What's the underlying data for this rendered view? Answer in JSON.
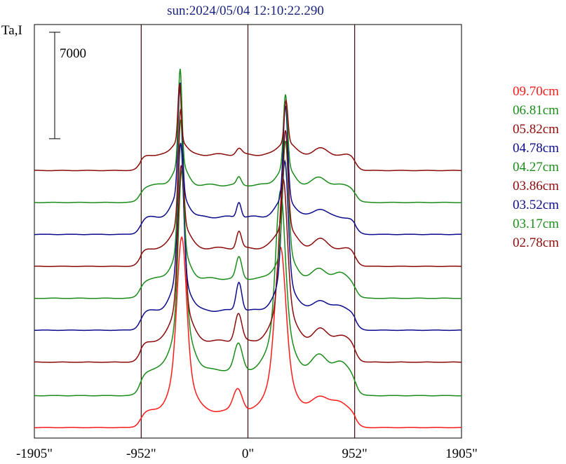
{
  "chart_data": {
    "type": "line",
    "title": "sun:2024/05/04 12:10:22.290",
    "title_color": "#1a237e",
    "ylabel": "Ta,I",
    "scale_bar_label": "7000",
    "x_ticks": [
      "-1905\"",
      "-952\"",
      "0\"",
      "952\"",
      "1905\""
    ],
    "x_tick_values": [
      -1905,
      -952,
      0,
      952,
      1905
    ],
    "xlim": [
      -1905,
      1905
    ],
    "vertical_lines_at": [
      -952,
      0,
      952
    ],
    "grid": false,
    "legend_position": "right",
    "series": [
      {
        "name": "09.70cm",
        "color": "#ff1a1a",
        "baseline": 0,
        "limb": 1100,
        "peaks": [
          {
            "x": -590,
            "h": 8400,
            "w": 40
          },
          {
            "x": -590,
            "h": 3000,
            "w": 90
          },
          {
            "x": 290,
            "h": 7500,
            "w": 45
          },
          {
            "x": 290,
            "h": 3200,
            "w": 100
          },
          {
            "x": -90,
            "h": 1500,
            "w": 40
          },
          {
            "x": 640,
            "h": 1000,
            "w": 70
          },
          {
            "x": 820,
            "h": 600,
            "w": 70
          }
        ]
      },
      {
        "name": "06.81cm",
        "color": "#1a8c1a",
        "baseline": 2100,
        "limb": 1700,
        "peaks": [
          {
            "x": -590,
            "h": 9900,
            "w": 30
          },
          {
            "x": -590,
            "h": 3200,
            "w": 85
          },
          {
            "x": 290,
            "h": 8800,
            "w": 40
          },
          {
            "x": 290,
            "h": 3000,
            "w": 95
          },
          {
            "x": -85,
            "h": 1700,
            "w": 35
          },
          {
            "x": 640,
            "h": 1000,
            "w": 65
          },
          {
            "x": 820,
            "h": 500,
            "w": 60
          }
        ]
      },
      {
        "name": "05.82cm",
        "color": "#8b0a0a",
        "baseline": 4300,
        "limb": 1400,
        "peaks": [
          {
            "x": -595,
            "h": 9100,
            "w": 28
          },
          {
            "x": -595,
            "h": 2500,
            "w": 80
          },
          {
            "x": 315,
            "h": 8300,
            "w": 35
          },
          {
            "x": 315,
            "h": 2400,
            "w": 90
          },
          {
            "x": -85,
            "h": 1800,
            "w": 30
          },
          {
            "x": 640,
            "h": 800,
            "w": 60
          },
          {
            "x": 820,
            "h": 400,
            "w": 60
          }
        ]
      },
      {
        "name": "04.78cm",
        "color": "#0b0b8c",
        "baseline": 6400,
        "limb": 1300,
        "peaks": [
          {
            "x": -600,
            "h": 8800,
            "w": 25
          },
          {
            "x": -600,
            "h": 2200,
            "w": 75
          },
          {
            "x": 330,
            "h": 7800,
            "w": 28
          },
          {
            "x": 330,
            "h": 2000,
            "w": 85
          },
          {
            "x": -80,
            "h": 1900,
            "w": 25
          },
          {
            "x": 640,
            "h": 700,
            "w": 60
          },
          {
            "x": 820,
            "h": 350,
            "w": 60
          }
        ]
      },
      {
        "name": "04.27cm",
        "color": "#1a8c1a",
        "baseline": 8500,
        "limb": 1300,
        "peaks": [
          {
            "x": -600,
            "h": 8500,
            "w": 22
          },
          {
            "x": -600,
            "h": 1900,
            "w": 70
          },
          {
            "x": 335,
            "h": 7300,
            "w": 25
          },
          {
            "x": 335,
            "h": 1700,
            "w": 80
          },
          {
            "x": -80,
            "h": 1400,
            "w": 25
          },
          {
            "x": 640,
            "h": 650,
            "w": 60
          },
          {
            "x": 820,
            "h": 350,
            "w": 60
          }
        ]
      },
      {
        "name": "03.86cm",
        "color": "#8b0a0a",
        "baseline": 10600,
        "limb": 1200,
        "peaks": [
          {
            "x": -600,
            "h": 7500,
            "w": 20
          },
          {
            "x": -600,
            "h": 1700,
            "w": 70
          },
          {
            "x": 335,
            "h": 6300,
            "w": 22
          },
          {
            "x": 335,
            "h": 1500,
            "w": 80
          },
          {
            "x": -80,
            "h": 1100,
            "w": 22
          },
          {
            "x": 640,
            "h": 600,
            "w": 60
          }
        ]
      },
      {
        "name": "03.52cm",
        "color": "#0b0b8c",
        "baseline": 12700,
        "limb": 1150,
        "peaks": [
          {
            "x": -605,
            "h": 7200,
            "w": 18
          },
          {
            "x": -605,
            "h": 1600,
            "w": 65
          },
          {
            "x": 335,
            "h": 6000,
            "w": 20
          },
          {
            "x": 335,
            "h": 1300,
            "w": 75
          },
          {
            "x": -80,
            "h": 1000,
            "w": 20
          },
          {
            "x": 640,
            "h": 550,
            "w": 60
          }
        ]
      },
      {
        "name": "03.17cm",
        "color": "#1a8c1a",
        "baseline": 14800,
        "limb": 1150,
        "peaks": [
          {
            "x": -605,
            "h": 6200,
            "w": 16
          },
          {
            "x": -605,
            "h": 1400,
            "w": 60
          },
          {
            "x": 335,
            "h": 4700,
            "w": 18
          },
          {
            "x": 335,
            "h": 1200,
            "w": 70
          },
          {
            "x": -80,
            "h": 500,
            "w": 20
          },
          {
            "x": 640,
            "h": 500,
            "w": 60
          }
        ]
      },
      {
        "name": "02.78cm",
        "color": "#8b0a0a",
        "baseline": 16900,
        "limb": 1050,
        "peaks": [
          {
            "x": -610,
            "h": 3700,
            "w": 14
          },
          {
            "x": -610,
            "h": 1000,
            "w": 55
          },
          {
            "x": 340,
            "h": 2700,
            "w": 16
          },
          {
            "x": 340,
            "h": 900,
            "w": 65
          },
          {
            "x": -80,
            "h": 400,
            "w": 25
          },
          {
            "x": 640,
            "h": 400,
            "w": 60
          }
        ]
      }
    ]
  }
}
